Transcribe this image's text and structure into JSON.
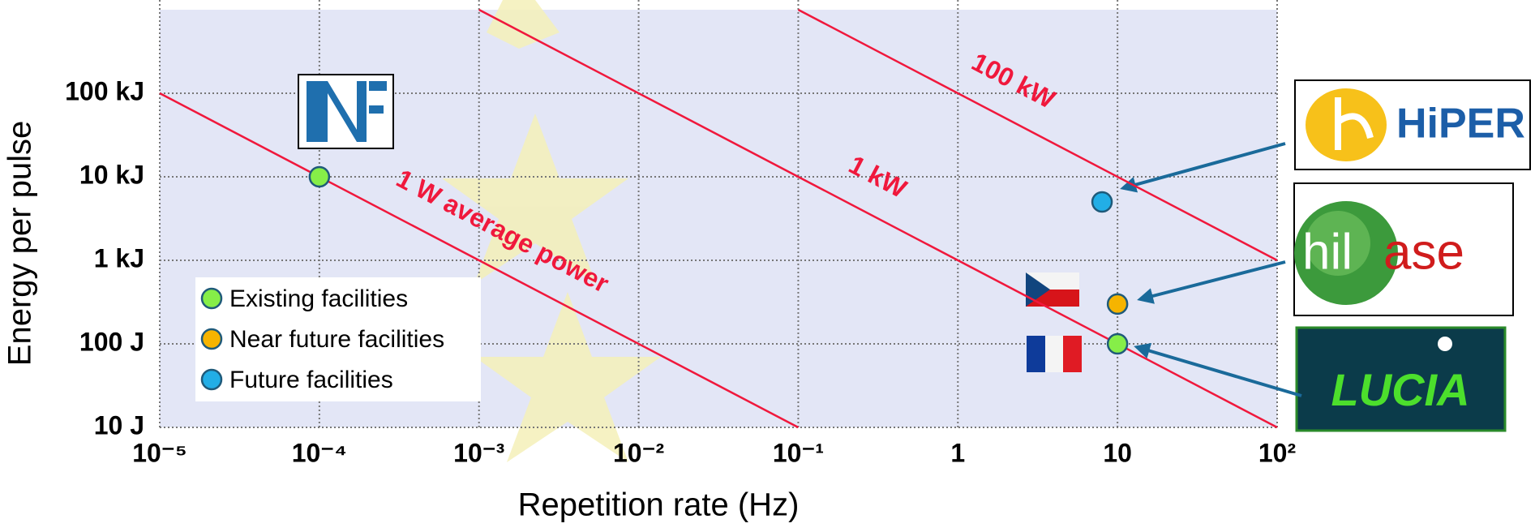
{
  "chart_data": {
    "type": "scatter",
    "x_label": "Repetition rate (Hz)",
    "y_label": "Energy per pulse",
    "xscale": "log",
    "yscale": "log",
    "xlim": [
      1e-05,
      100
    ],
    "ylim": [
      10,
      1000000
    ],
    "xticks": [
      {
        "value": 1e-05,
        "label": "10⁻⁵"
      },
      {
        "value": 0.0001,
        "label": "10⁻⁴"
      },
      {
        "value": 0.001,
        "label": "10⁻³"
      },
      {
        "value": 0.01,
        "label": "10⁻²"
      },
      {
        "value": 0.1,
        "label": "10⁻¹"
      },
      1,
      10,
      {
        "value": 100,
        "label": "10²"
      }
    ],
    "yticks": [
      {
        "value": 10,
        "label": "10 J"
      },
      {
        "value": 100,
        "label": "100 J"
      },
      {
        "value": 1000,
        "label": "1 kJ"
      },
      {
        "value": 10000,
        "label": "10  kJ"
      },
      {
        "value": 100000,
        "label": "100 kJ"
      }
    ],
    "grid": true,
    "legend": "lower-left",
    "series": [
      {
        "name": "Existing facilities",
        "color": "#86ee48",
        "x": [
          0.0001,
          10
        ],
        "values": [
          10000,
          100
        ]
      },
      {
        "name": "Near future facilities",
        "color": "#f6b400",
        "x": [
          10
        ],
        "values": [
          300
        ]
      },
      {
        "name": "Future facilities",
        "color": "#22aee6",
        "x": [
          8
        ],
        "values": [
          5000
        ]
      }
    ],
    "power_lines": [
      {
        "label": "1 W average power",
        "color": "#f0183c",
        "x": [
          1e-05,
          0.1
        ],
        "values": [
          100000,
          10
        ]
      },
      {
        "label": "1 kW",
        "color": "#f0183c",
        "x": [
          0.001,
          100
        ],
        "values": [
          1000000,
          10
        ]
      },
      {
        "label": "100 kW",
        "color": "#f0183c",
        "x": [
          0.1,
          100
        ],
        "values": [
          1000000,
          1000
        ]
      }
    ],
    "logos": {
      "hiper": "HiPER",
      "hilase": [
        "hil",
        "ase"
      ],
      "lucia": "LUCIA"
    }
  }
}
